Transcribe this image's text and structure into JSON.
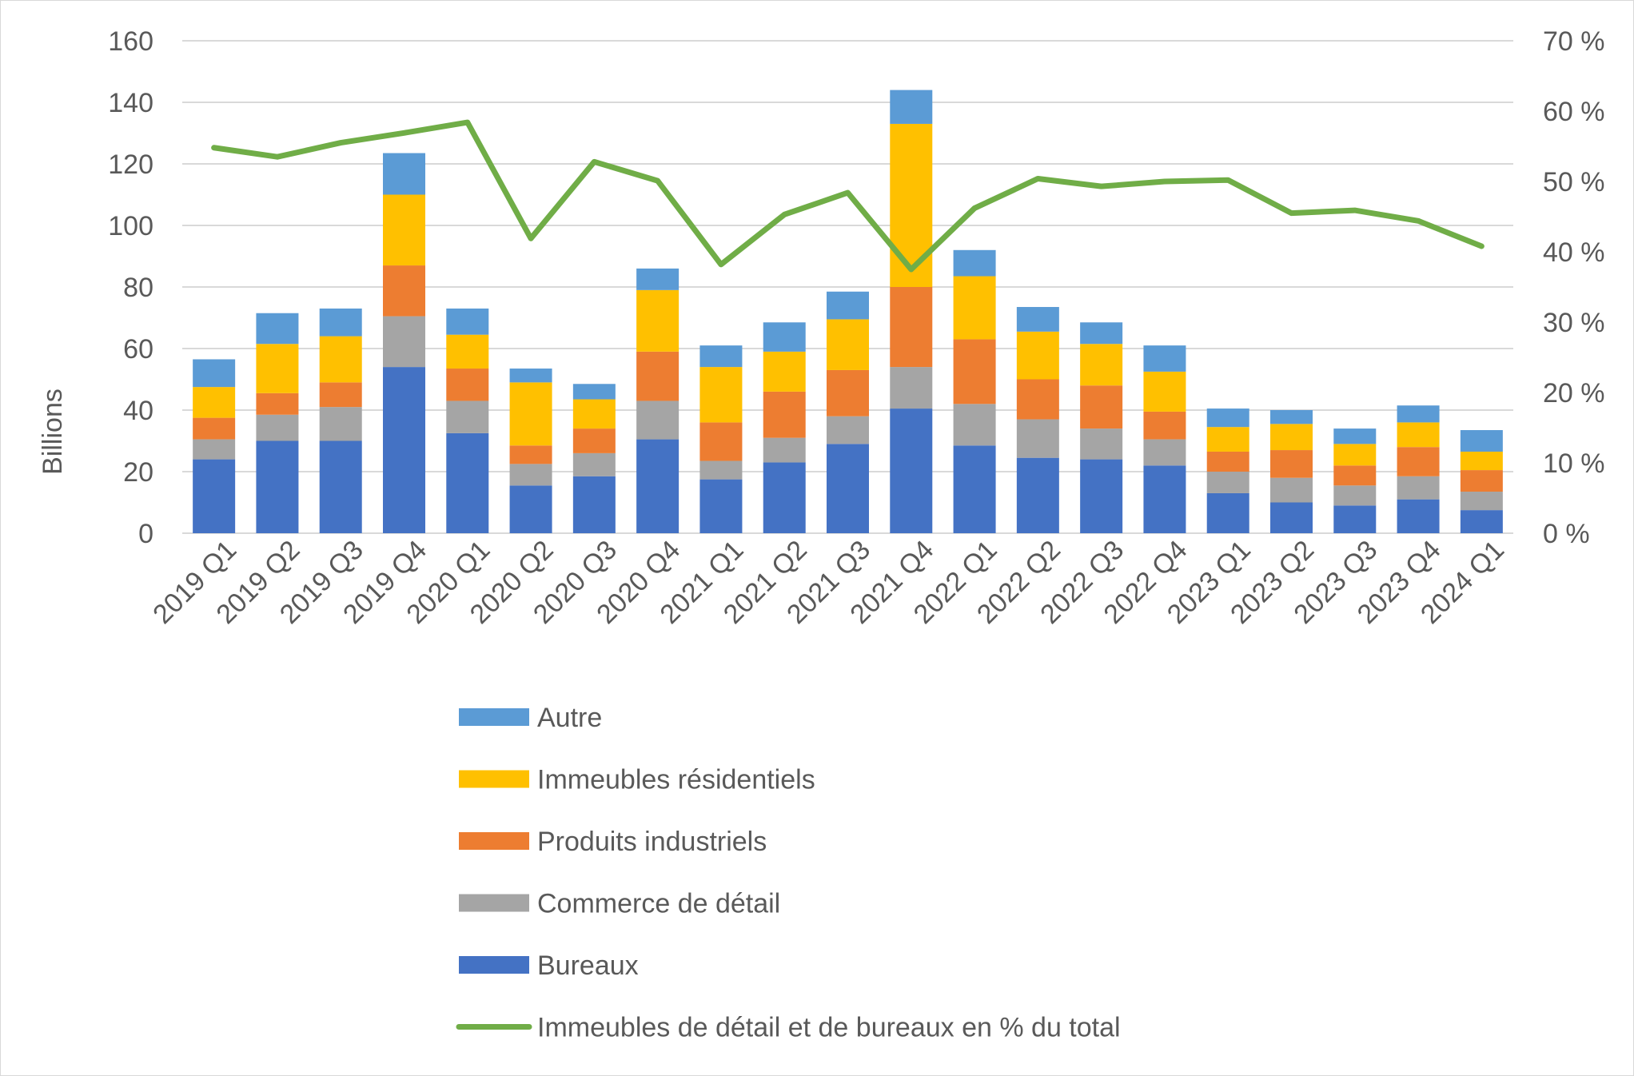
{
  "chart_data": {
    "type": "bar",
    "stacked": true,
    "title": "",
    "ylabel": "Billions",
    "ylim": [
      0,
      160
    ],
    "y_ticks": [
      "0",
      "20",
      "40",
      "60",
      "80",
      "100",
      "120",
      "140",
      "160"
    ],
    "y2lim": [
      0,
      70
    ],
    "y2_ticks": [
      "0 %",
      "10 %",
      "20 %",
      "30 %",
      "40 %",
      "50 %",
      "60 %",
      "70 %"
    ],
    "grid": true,
    "legend_position": "bottom",
    "categories": [
      "2019 Q1",
      "2019 Q2",
      "2019 Q3",
      "2019 Q4",
      "2020 Q1",
      "2020 Q2",
      "2020 Q3",
      "2020 Q4",
      "2021 Q1",
      "2021 Q2",
      "2021 Q3",
      "2021 Q4",
      "2022 Q1",
      "2022 Q2",
      "2022 Q3",
      "2022 Q4",
      "2023 Q1",
      "2023 Q2",
      "2023 Q3",
      "2023 Q4",
      "2024 Q1"
    ],
    "series": [
      {
        "name": "Bureaux",
        "color": "#4472C4",
        "values": [
          24,
          30,
          30,
          54,
          32.5,
          15.5,
          18.5,
          30.5,
          17.5,
          23,
          29,
          40.5,
          28.5,
          24.5,
          24,
          22,
          13,
          10,
          9,
          11,
          7.5
        ]
      },
      {
        "name": "Commerce de détail",
        "color": "#A5A5A5",
        "values": [
          6.5,
          8.5,
          11,
          16.5,
          10.5,
          7,
          7.5,
          12.5,
          6,
          8,
          9,
          13.5,
          13.5,
          12.5,
          10,
          8.5,
          7,
          8,
          6.5,
          7.5,
          6
        ]
      },
      {
        "name": "Produits industriels",
        "color": "#ED7D31",
        "values": [
          7,
          7,
          8,
          16.5,
          10.5,
          6,
          8,
          16,
          12.5,
          15,
          15,
          26,
          21,
          13,
          14,
          9,
          6.5,
          9,
          6.5,
          9.5,
          7
        ]
      },
      {
        "name": "Immeubles résidentiels",
        "color": "#FFC000",
        "values": [
          10,
          16,
          15,
          23,
          11,
          20.5,
          9.5,
          20,
          18,
          13,
          16.5,
          53,
          20.5,
          15.5,
          13.5,
          13,
          8,
          8.5,
          7,
          8,
          6
        ],
        "_comment": ""
      },
      {
        "name": "Autre",
        "color": "#5B9BD5",
        "values": [
          9,
          10,
          9,
          13.5,
          8.5,
          4.5,
          5,
          7,
          7,
          9.5,
          9,
          11,
          8.5,
          8,
          7,
          8.5,
          6,
          4.5,
          5,
          5.5,
          7
        ]
      }
    ],
    "line_series": {
      "name": "Immeubles de détail et de bureaux en % du total",
      "color": "#70AD47",
      "axis": "secondary",
      "values": [
        54.8,
        53.5,
        55.5,
        56.9,
        58.4,
        41.9,
        52.8,
        50.1,
        38.2,
        45.3,
        48.4,
        37.5,
        46.2,
        50.4,
        49.3,
        50.0,
        50.2,
        45.5,
        45.9,
        44.4,
        40.8
      ]
    }
  },
  "legend": {
    "items": [
      {
        "label": "Autre",
        "color": "#5B9BD5",
        "kind": "box"
      },
      {
        "label": "Immeubles résidentiels",
        "color": "#FFC000",
        "kind": "box"
      },
      {
        "label": "Produits industriels",
        "color": "#ED7D31",
        "kind": "box"
      },
      {
        "label": "Commerce de détail",
        "color": "#A5A5A5",
        "kind": "box"
      },
      {
        "label": "Bureaux",
        "color": "#4472C4",
        "kind": "box"
      },
      {
        "label": "Immeubles de détail et de bureaux en % du total",
        "color": "#70AD47",
        "kind": "line"
      }
    ]
  }
}
